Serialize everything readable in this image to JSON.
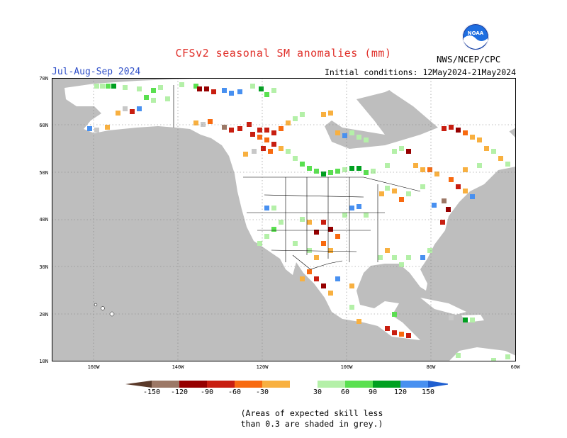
{
  "title": "CFSv2 seasonal SM anomalies (mm)",
  "season": "Jul-Aug-Sep 2024",
  "initial_conditions": "Initial conditions: 12May2024-21May2024",
  "agency": "NWS/NCEP/CPC",
  "logo_text": "NOAA",
  "latitude_labels": [
    "70N",
    "60N",
    "50N",
    "40N",
    "30N",
    "20N",
    "10N"
  ],
  "longitude_labels": [
    "160W",
    "140W",
    "120W",
    "100W",
    "80W",
    "60W"
  ],
  "colorbar": {
    "labels": [
      "-150",
      "-120",
      "-90",
      "-60",
      "-30",
      "30",
      "60",
      "90",
      "120",
      "150"
    ],
    "colors": {
      "lt_-150": "#5a3a2a",
      "-150_-120": "#9c7866",
      "-120_-90": "#960000",
      "-90_-60": "#c81e10",
      "-60_-30": "#f86a10",
      "-30_0": "#f8b040",
      "0_30": "#ffffff",
      "30_60": "#b4f0a8",
      "60_90": "#5ae050",
      "90_120": "#00a020",
      "120_150": "#4890f0",
      "gt_150": "#2060d0"
    }
  },
  "colors": {
    "ocean_land_skill": "#bebebe",
    "land": "#ffffff",
    "title": "#e0302a",
    "season": "#3050c8"
  },
  "note_line1": "(Areas of expected skill less",
  "note_line2": "than 0.3 are shaded in grey.)"
}
